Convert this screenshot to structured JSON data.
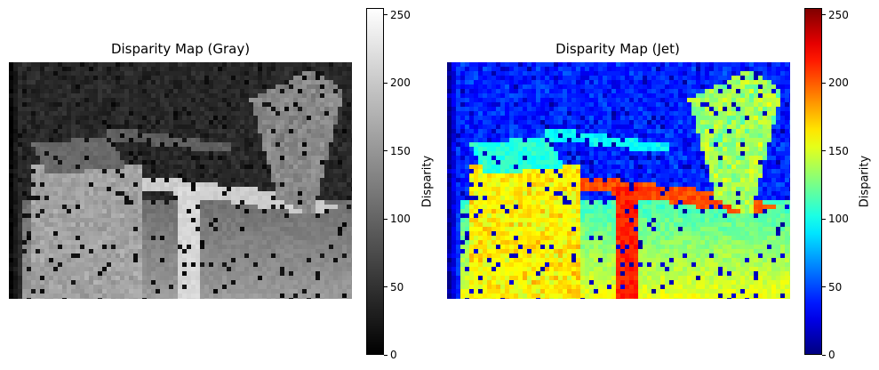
{
  "chart_data": [
    {
      "type": "heatmap",
      "title": "Disparity Map (Gray)",
      "colormap": "gray",
      "colorbar": {
        "label": "Disparity",
        "range": [
          0,
          255
        ],
        "ticks": [
          0,
          50,
          100,
          150,
          200,
          250
        ]
      },
      "axes": "off"
    },
    {
      "type": "heatmap",
      "title": "Disparity Map (Jet)",
      "colormap": "jet",
      "colorbar": {
        "label": "Disparity",
        "range": [
          0,
          255
        ],
        "ticks": [
          0,
          50,
          100,
          150,
          200,
          250
        ]
      },
      "axes": "off"
    }
  ]
}
